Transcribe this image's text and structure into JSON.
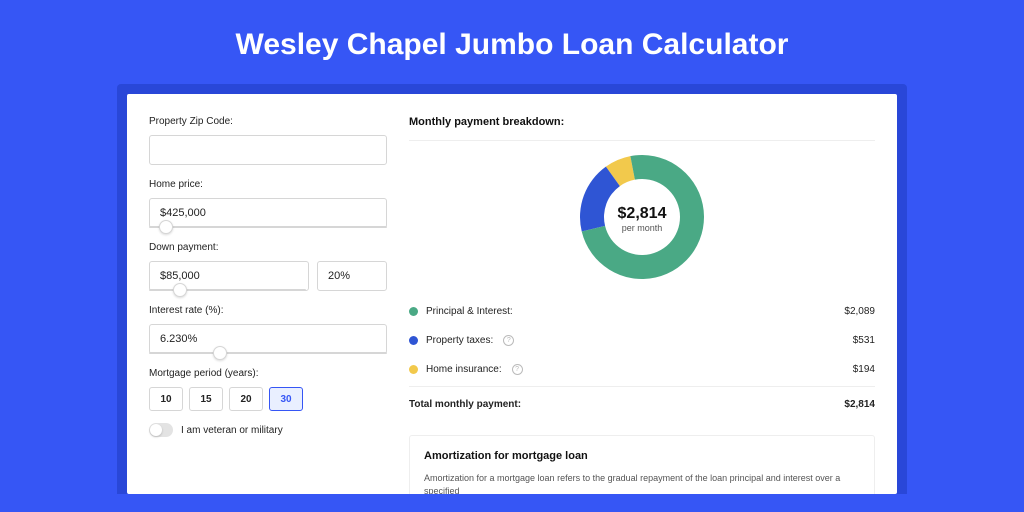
{
  "page": {
    "title": "Wesley Chapel Jumbo Loan Calculator",
    "background_color": "#3656f5",
    "card_outer_color": "#2947d8"
  },
  "form": {
    "zip": {
      "label": "Property Zip Code:",
      "value": ""
    },
    "home_price": {
      "label": "Home price:",
      "value": "$425,000",
      "slider_pct": 7
    },
    "down_payment": {
      "label": "Down payment:",
      "amount": "$85,000",
      "pct": "20%",
      "slider_pct": 20
    },
    "interest_rate": {
      "label": "Interest rate (%):",
      "value": "6.230%",
      "slider_pct": 30
    },
    "mortgage_period": {
      "label": "Mortgage period (years):",
      "options": [
        "10",
        "15",
        "20",
        "30"
      ],
      "selected": "30"
    },
    "veteran": {
      "label": "I am veteran or military",
      "checked": false
    }
  },
  "breakdown": {
    "title": "Monthly payment breakdown:",
    "donut": {
      "amount": "$2,814",
      "sub": "per month",
      "type": "donut",
      "slices": [
        {
          "key": "principal_interest",
          "value": 2089,
          "color": "#4aa985"
        },
        {
          "key": "property_taxes",
          "value": 531,
          "color": "#2f55d4"
        },
        {
          "key": "home_insurance",
          "value": 194,
          "color": "#f2c94c"
        }
      ],
      "inner_radius": 38,
      "outer_radius": 62,
      "background_color": "#ffffff"
    },
    "legend": [
      {
        "label": "Principal & Interest:",
        "value": "$2,089",
        "color": "#4aa985",
        "info": false
      },
      {
        "label": "Property taxes:",
        "value": "$531",
        "color": "#2f55d4",
        "info": true
      },
      {
        "label": "Home insurance:",
        "value": "$194",
        "color": "#f2c94c",
        "info": true
      }
    ],
    "total": {
      "label": "Total monthly payment:",
      "value": "$2,814"
    }
  },
  "amortization": {
    "title": "Amortization for mortgage loan",
    "text": "Amortization for a mortgage loan refers to the gradual repayment of the loan principal and interest over a specified"
  }
}
